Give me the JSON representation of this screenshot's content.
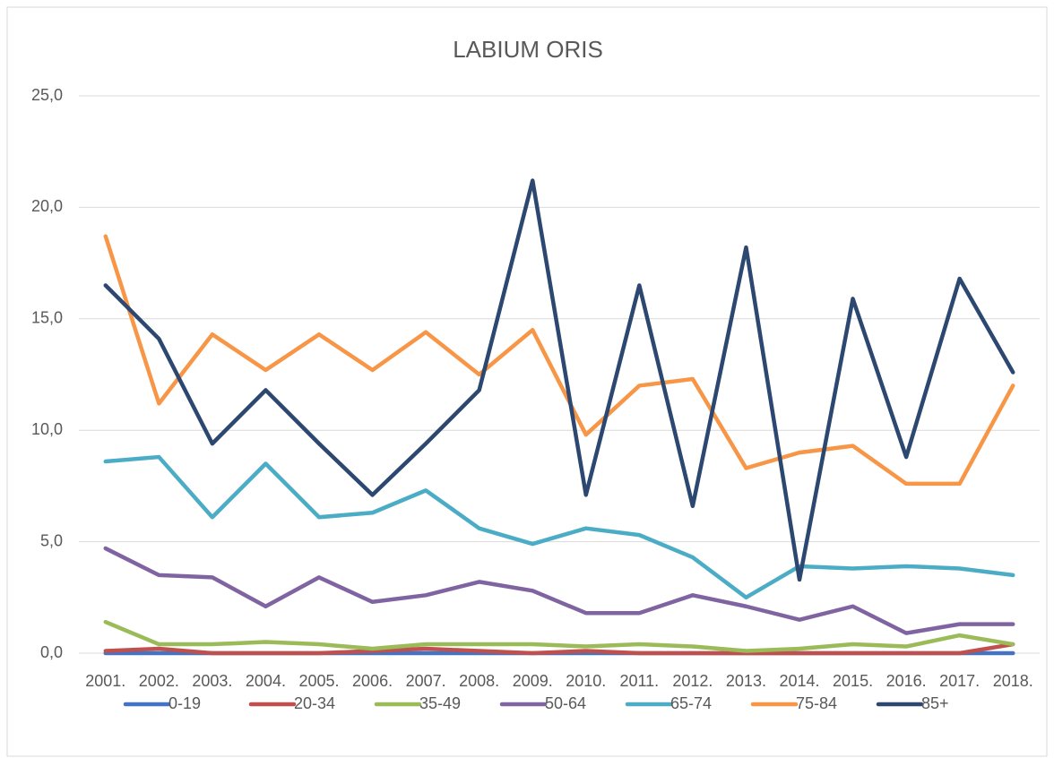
{
  "chart_data": {
    "type": "line",
    "title": "LABIUM ORIS",
    "categories": [
      "2001.",
      "2002.",
      "2003.",
      "2004.",
      "2005.",
      "2006.",
      "2007.",
      "2008.",
      "2009.",
      "2010.",
      "2011.",
      "2012.",
      "2013.",
      "2014.",
      "2015.",
      "2016.",
      "2017.",
      "2018."
    ],
    "series": [
      {
        "name": "0-19",
        "color": "#4472c4",
        "values": [
          0,
          0,
          0,
          0,
          0,
          0,
          0,
          0,
          0,
          0,
          0,
          0,
          0,
          0,
          0,
          0,
          0,
          0
        ]
      },
      {
        "name": "20-34",
        "color": "#c0504d",
        "values": [
          0.1,
          0.2,
          0,
          0,
          0,
          0.1,
          0.2,
          0.1,
          0,
          0.1,
          0,
          0,
          0,
          0,
          0,
          0,
          0,
          0.4
        ]
      },
      {
        "name": "35-49",
        "color": "#9bbb59",
        "values": [
          1.4,
          0.4,
          0.4,
          0.5,
          0.4,
          0.2,
          0.4,
          0.4,
          0.4,
          0.3,
          0.4,
          0.3,
          0.1,
          0.2,
          0.4,
          0.3,
          0.8,
          0.4
        ]
      },
      {
        "name": "50-64",
        "color": "#8064a2",
        "values": [
          4.7,
          3.5,
          3.4,
          2.1,
          3.4,
          2.3,
          2.6,
          3.2,
          2.8,
          1.8,
          1.8,
          2.6,
          2.1,
          1.5,
          2.1,
          0.9,
          1.3,
          1.3
        ]
      },
      {
        "name": "65-74",
        "color": "#4bacc6",
        "values": [
          8.6,
          8.8,
          6.1,
          8.5,
          6.1,
          6.3,
          7.3,
          5.6,
          4.9,
          5.6,
          5.3,
          4.3,
          2.5,
          3.9,
          3.8,
          3.9,
          3.8,
          3.5
        ]
      },
      {
        "name": "75-84",
        "color": "#f79646",
        "values": [
          18.7,
          11.2,
          14.3,
          12.7,
          14.3,
          12.7,
          14.4,
          12.5,
          14.5,
          9.8,
          12.0,
          12.3,
          8.3,
          9.0,
          9.3,
          7.6,
          7.6,
          12.0
        ]
      },
      {
        "name": "85+",
        "color": "#2c4770",
        "values": [
          16.5,
          14.1,
          9.4,
          11.8,
          9.4,
          7.1,
          9.4,
          11.8,
          21.2,
          7.1,
          16.5,
          6.6,
          18.2,
          3.3,
          15.9,
          8.8,
          16.8,
          12.6
        ]
      }
    ],
    "ylim": [
      0,
      25
    ],
    "yticks": [
      {
        "value": 0,
        "label": "0,0"
      },
      {
        "value": 5,
        "label": "5,0"
      },
      {
        "value": 10,
        "label": "10,0"
      },
      {
        "value": 15,
        "label": "15,0"
      },
      {
        "value": 20,
        "label": "20,0"
      },
      {
        "value": 25,
        "label": "25,0"
      }
    ],
    "grid": true,
    "legend": "bottom"
  }
}
